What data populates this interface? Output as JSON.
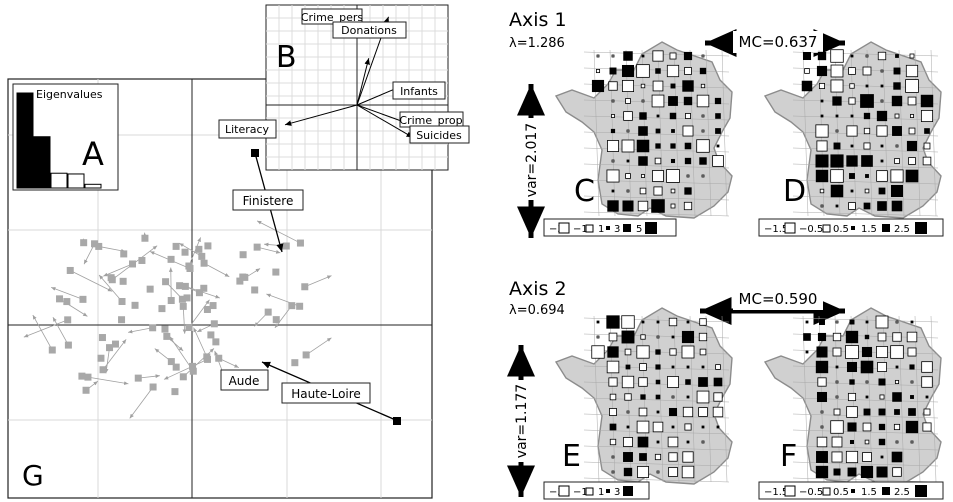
{
  "panels": {
    "A": "A",
    "B": "B",
    "C": "C",
    "D": "D",
    "E": "E",
    "F": "F",
    "G": "G"
  },
  "eigen": {
    "title": "Eigenvalues",
    "values": [
      1.286,
      0.694,
      0.2,
      0.19,
      0.05
    ],
    "colors": [
      "#000000",
      "#000000",
      "#ffffff",
      "#ffffff",
      "#ffffff"
    ]
  },
  "variables": [
    {
      "label": "Crime_pers",
      "vx": 0.35,
      "vy": 0.98
    },
    {
      "label": "Donations",
      "vx": 0.13,
      "vy": 0.52
    },
    {
      "label": "Infants",
      "vx": 0.52,
      "vy": 0.22
    },
    {
      "label": "Crime_prop",
      "vx": 0.72,
      "vy": -0.26
    },
    {
      "label": "Suicides",
      "vx": 0.62,
      "vy": -0.36
    },
    {
      "label": "Literacy",
      "vx": -0.8,
      "vy": -0.22
    }
  ],
  "departments": [
    {
      "label": "Finistere"
    },
    {
      "label": "Aude"
    },
    {
      "label": "Haute-Loire"
    }
  ],
  "axis1": {
    "title": "Axis 1",
    "lambda": "λ=1.286",
    "mc": "MC=0.637",
    "var": "var=2.017",
    "legend_c": [
      "−3",
      "−1",
      "1",
      "3",
      "5"
    ],
    "legend_d": [
      "−1.5",
      "−0.5",
      "0.5",
      "1.5",
      "2.5"
    ]
  },
  "axis2": {
    "title": "Axis 2",
    "lambda": "λ=0.694",
    "mc": "MC=0.590",
    "var": "var=1.177",
    "legend_e": [
      "−3",
      "−1",
      "1",
      "3"
    ],
    "legend_f": [
      "−1.5",
      "−0.5",
      "0.5",
      "1.5",
      "2.5"
    ]
  },
  "colors": {
    "map_fill": "#d0d0d0",
    "map_line": "#9a9a9a",
    "point": "#a8a8a8",
    "ink": "#000000"
  }
}
